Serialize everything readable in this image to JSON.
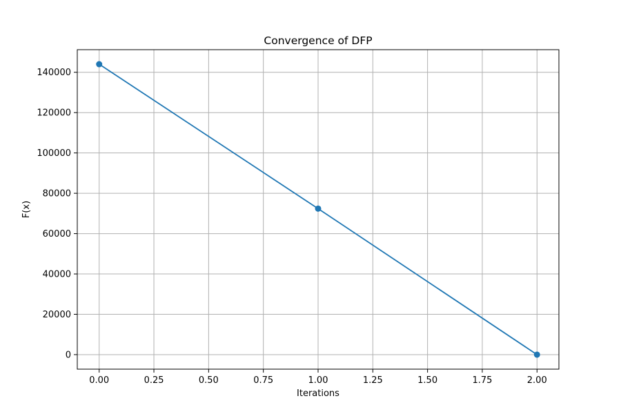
{
  "chart_data": {
    "type": "line",
    "title": "Convergence of DFP",
    "xlabel": "Iterations",
    "ylabel": "F(x)",
    "x": [
      0,
      1,
      2
    ],
    "series": [
      {
        "values": [
          144000,
          72400,
          0
        ]
      }
    ],
    "xlim": [
      -0.1,
      2.1
    ],
    "ylim": [
      -7200,
      151200
    ],
    "xticks": [
      0.0,
      0.25,
      0.5,
      0.75,
      1.0,
      1.25,
      1.5,
      1.75,
      2.0
    ],
    "xtick_labels": [
      "0.00",
      "0.25",
      "0.50",
      "0.75",
      "1.00",
      "1.25",
      "1.50",
      "1.75",
      "2.00"
    ],
    "yticks": [
      0,
      20000,
      40000,
      60000,
      80000,
      100000,
      120000,
      140000
    ],
    "ytick_labels": [
      "0",
      "20000",
      "40000",
      "60000",
      "80000",
      "100000",
      "120000",
      "140000"
    ],
    "grid": true,
    "marker": "circle",
    "colors": {
      "line": "#1f77b4",
      "grid": "#b0b0b0",
      "axes": "#000000"
    }
  }
}
